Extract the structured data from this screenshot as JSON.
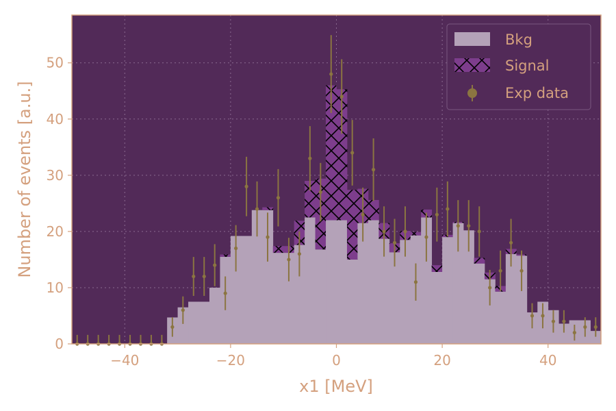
{
  "chart_data": {
    "type": "histogram",
    "title": "",
    "xlabel": "x1 [MeV]",
    "ylabel": "Number of events [a.u.]",
    "xlim": [
      -50,
      50
    ],
    "ylim": [
      0,
      58.5
    ],
    "xticks": [
      -40,
      -20,
      0,
      20,
      40
    ],
    "yticks": [
      0,
      10,
      20,
      30,
      40,
      50
    ],
    "grid": true,
    "legend_position": "top-right",
    "bin_edges": [
      -50,
      -48,
      -46,
      -44,
      -42,
      -40,
      -38,
      -36,
      -34,
      -32,
      -30,
      -28,
      -26,
      -24,
      -22,
      -20,
      -18,
      -16,
      -14,
      -12,
      -10,
      -8,
      -6,
      -4,
      -2,
      0,
      2,
      4,
      6,
      8,
      10,
      12,
      14,
      16,
      18,
      20,
      22,
      24,
      26,
      28,
      30,
      32,
      34,
      36,
      38,
      40,
      42,
      44,
      46,
      48,
      50
    ],
    "stack": [
      {
        "name": "Bkg",
        "color": "#b4a2b8",
        "values": [
          0,
          0,
          0,
          0,
          0,
          0,
          0,
          0,
          0,
          4.7,
          6.5,
          7.5,
          7.5,
          10,
          15.5,
          19.2,
          19.2,
          23.8,
          23.8,
          16.2,
          16.2,
          17.6,
          22.5,
          16.8,
          22,
          22,
          15,
          21.5,
          22,
          18.7,
          16.3,
          18.5,
          19.3,
          22.5,
          12.8,
          19,
          21.5,
          20.2,
          14.3,
          11.5,
          9.3,
          16,
          15.7,
          5.6,
          7.5,
          6,
          3.6,
          4.2,
          4.2,
          2.3
        ]
      },
      {
        "name": "Signal",
        "color": "#7d3d8c",
        "values": [
          0,
          0,
          0,
          0,
          0,
          0,
          0,
          0,
          0,
          0,
          0,
          0,
          0,
          0,
          0.4,
          0,
          0,
          0,
          0.5,
          1.2,
          1.2,
          4.3,
          6.5,
          12.6,
          24,
          23.3,
          12.4,
          6.1,
          3.6,
          2.8,
          1.6,
          1.6,
          0.6,
          1.4,
          1.2,
          0.4,
          0.2,
          0,
          1,
          1.2,
          1,
          0.9,
          0.2,
          0,
          0,
          0,
          0,
          0,
          0,
          0
        ]
      }
    ],
    "data_series": {
      "name": "Exp data",
      "color": "#8b7541",
      "x": [
        -49,
        -47,
        -45,
        -43,
        -41,
        -39,
        -37,
        -35,
        -33,
        -31,
        -29,
        -27,
        -25,
        -23,
        -21,
        -19,
        -17,
        -15,
        -13,
        -11,
        -9,
        -7,
        -5,
        -3,
        -1,
        1,
        3,
        5,
        7,
        9,
        11,
        13,
        15,
        17,
        19,
        21,
        23,
        25,
        27,
        29,
        31,
        33,
        35,
        37,
        39,
        41,
        43,
        45,
        47,
        49
      ],
      "y": [
        0,
        0,
        0,
        0,
        0,
        0,
        0,
        0,
        0,
        3,
        6,
        12,
        12,
        14,
        9,
        17,
        28,
        24,
        19,
        26,
        15,
        16,
        33,
        27,
        48,
        44,
        34,
        23,
        31,
        20,
        18,
        20,
        11,
        19,
        23,
        24,
        21,
        21,
        20,
        10,
        13,
        18,
        13,
        5,
        5,
        4,
        4,
        2,
        3,
        3
      ]
    },
    "legend": [
      "Bkg",
      "Signal",
      "Exp data"
    ]
  }
}
